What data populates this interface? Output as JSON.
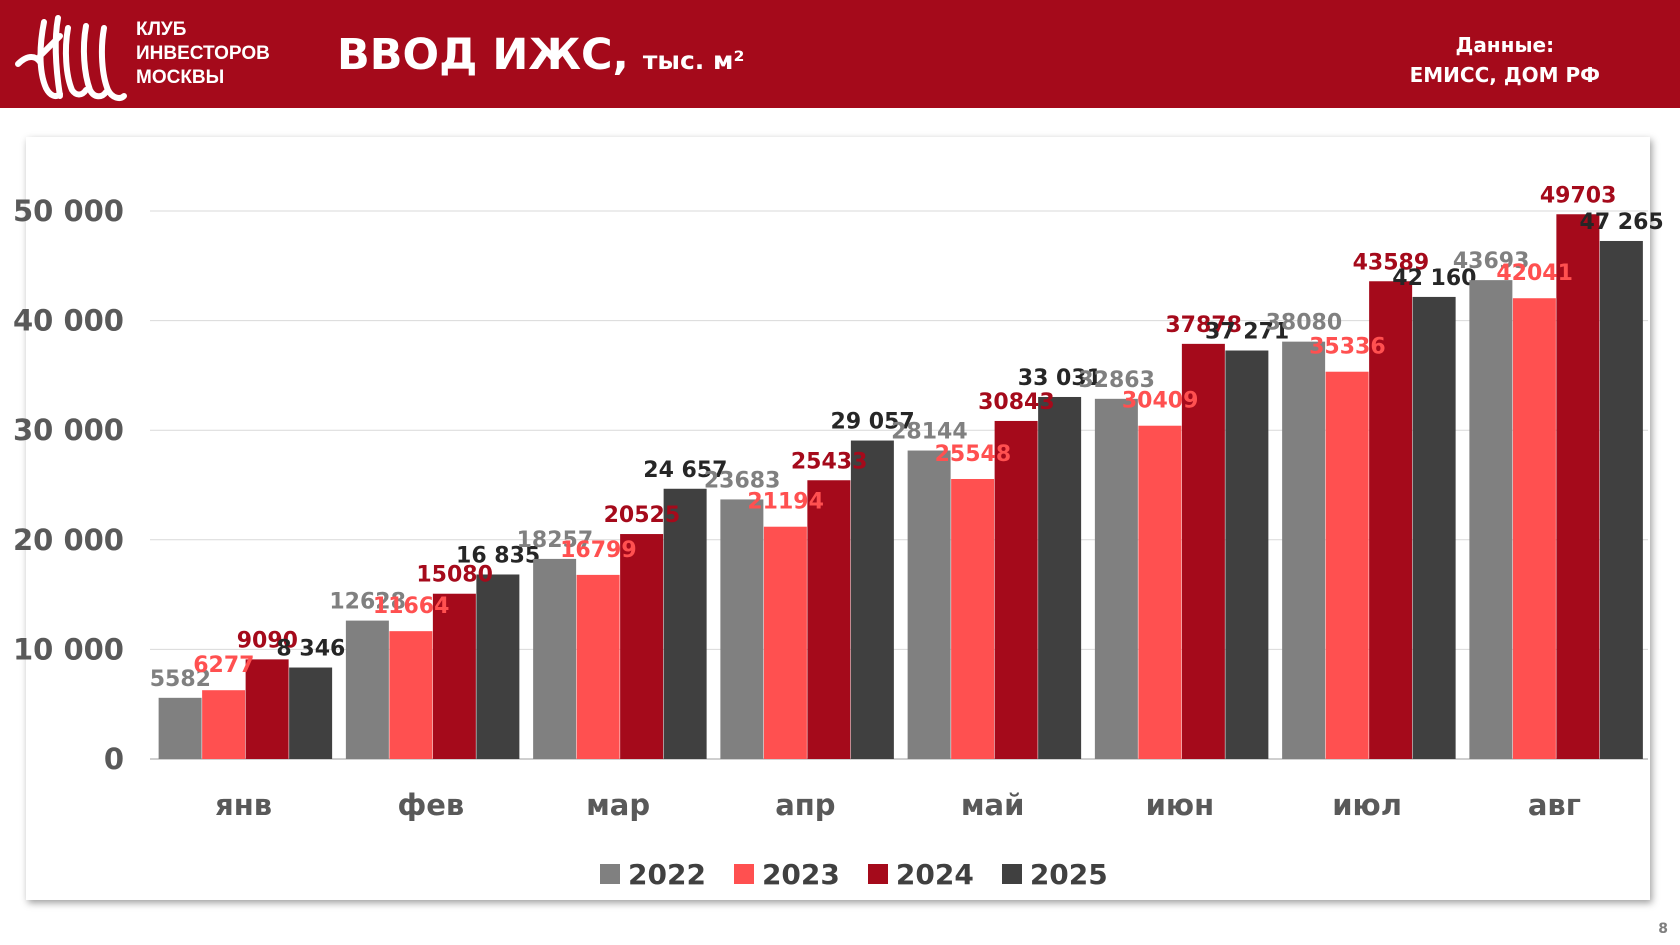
{
  "header": {
    "logo_monogram": "КИМ",
    "club_lines": [
      "КЛУБ",
      "ИНВЕСТОРОВ",
      "МОСКВЫ"
    ],
    "title": "ВВОД ИЖС,",
    "title_unit": "тыс. м²",
    "source_lines": [
      "Данные:",
      "ЕМИСС, ДОМ РФ"
    ]
  },
  "page_number": "8",
  "colors": {
    "header_bg": "#a50a1b",
    "series_2022": "#808080",
    "series_2023": "#ff5050",
    "series_2024": "#a50a1b",
    "series_2025": "#404040"
  },
  "chart_data": {
    "type": "bar",
    "title": "",
    "xlabel": "",
    "ylabel": "",
    "ylim": [
      0,
      50000
    ],
    "yticks": [
      0,
      10000,
      20000,
      30000,
      40000,
      50000
    ],
    "ytick_labels": [
      "0",
      "10 000",
      "20 000",
      "30 000",
      "40 000",
      "50 000"
    ],
    "grid": true,
    "legend_position": "bottom",
    "categories": [
      "янв",
      "фев",
      "мар",
      "апр",
      "май",
      "июн",
      "июл",
      "авг"
    ],
    "series": [
      {
        "name": "2022",
        "color": "#808080",
        "label_color": "#808080",
        "values": [
          5582,
          12628,
          18257,
          23683,
          28144,
          32863,
          38080,
          43693
        ],
        "labels": [
          "5582",
          "12628",
          "18257",
          "23683",
          "28144",
          "32863",
          "38080",
          "43693"
        ]
      },
      {
        "name": "2023",
        "color": "#ff5050",
        "label_color": "#ff5050",
        "values": [
          6277,
          11664,
          16799,
          21194,
          25548,
          30409,
          35336,
          42041
        ],
        "labels": [
          "6277",
          "11664",
          "16799",
          "21194",
          "25548",
          "30409",
          "35336",
          "42041"
        ]
      },
      {
        "name": "2024",
        "color": "#a50a1b",
        "label_color": "#a50a1b",
        "values": [
          9090,
          15080,
          20525,
          25433,
          30843,
          37878,
          43589,
          49703
        ],
        "labels": [
          "9090",
          "15080",
          "20525",
          "25433",
          "30843",
          "37878",
          "43589",
          "49703"
        ]
      },
      {
        "name": "2025",
        "color": "#404040",
        "label_color": "#262626",
        "values": [
          8346,
          16835,
          24657,
          29057,
          33031,
          37271,
          42160,
          47265
        ],
        "labels": [
          "8 346",
          "16 835",
          "24 657",
          "29 057",
          "33 031",
          "37 271",
          "42 160",
          "47 265"
        ]
      }
    ]
  }
}
